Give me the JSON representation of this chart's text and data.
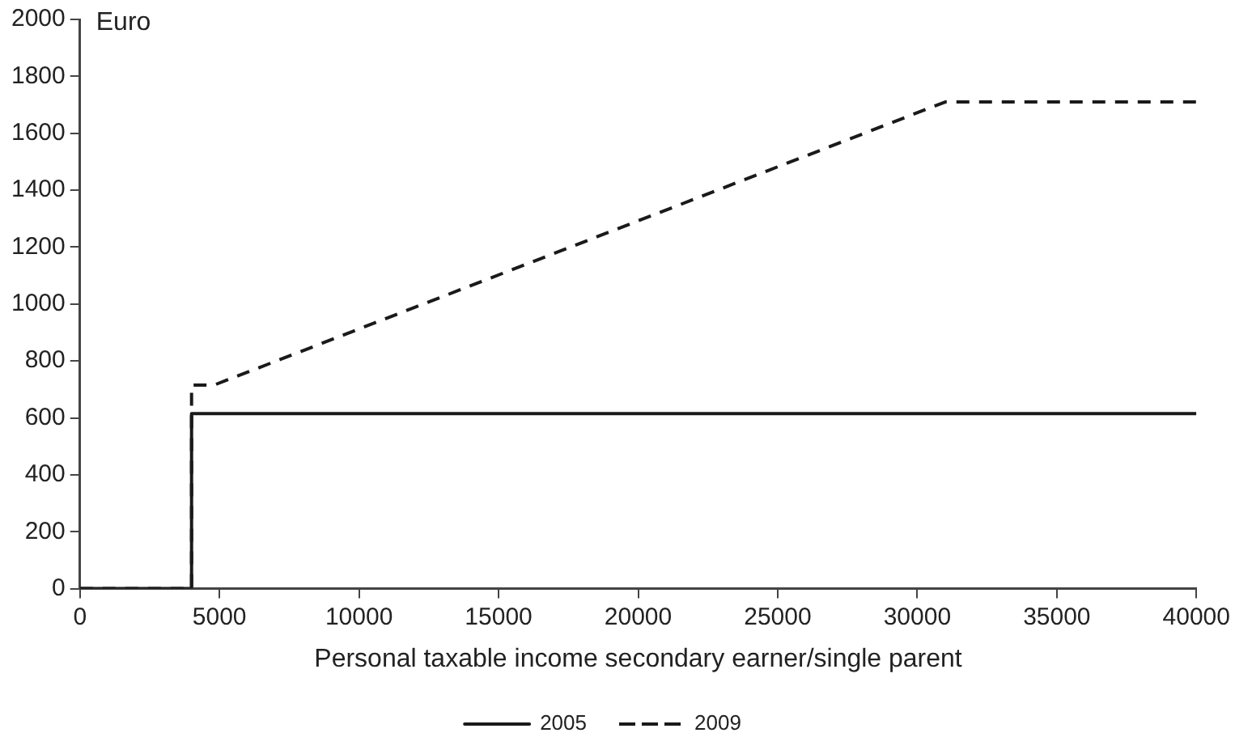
{
  "chart_data": {
    "type": "line",
    "xlabel": "Personal taxable income secondary earner/single parent",
    "ylabel": "Euro",
    "series": [
      {
        "name": "2005",
        "color": "#1a1a1a",
        "line_style": "solid",
        "x": [
          0,
          4000,
          4000,
          40000
        ],
        "values": [
          0,
          0,
          615,
          615
        ]
      },
      {
        "name": "2009",
        "color": "#1a1a1a",
        "line_style": "dashed",
        "x": [
          0,
          4000,
          4000,
          4800,
          31000,
          40000
        ],
        "values": [
          0,
          0,
          715,
          715,
          1710,
          1710
        ]
      }
    ],
    "xlim": [
      0,
      40000
    ],
    "xticks": [
      0,
      5000,
      10000,
      15000,
      20000,
      25000,
      30000,
      35000,
      40000
    ],
    "ylim": [
      0,
      2000
    ],
    "yticks": [
      0,
      200,
      400,
      600,
      800,
      1000,
      1200,
      1400,
      1600,
      1800,
      2000
    ],
    "grid": false,
    "legend": "bottom",
    "marker": "none"
  }
}
